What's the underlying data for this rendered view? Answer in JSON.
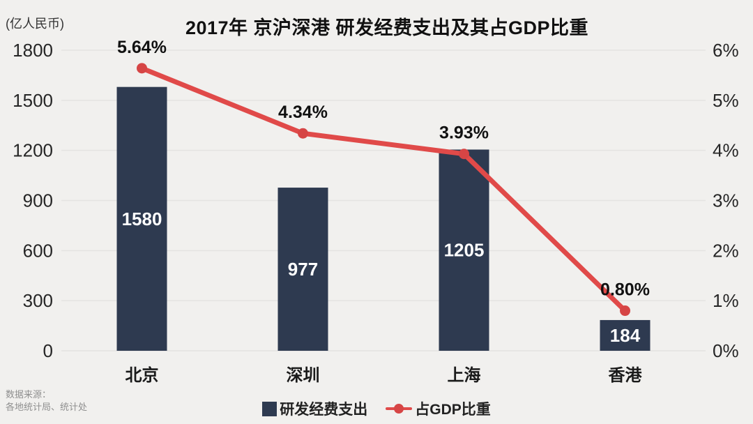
{
  "title": "2017年 京沪深港 研发经费支出及其占GDP比重",
  "unit_label": "(亿人民币)",
  "legend": {
    "bar_label": "研发经费支出",
    "line_label": "占GDP比重"
  },
  "source": {
    "line1": "数据来源：",
    "line2": "各地统计局、统计处"
  },
  "colors": {
    "background": "#f1f0ee",
    "bar": "#2e3a50",
    "line": "#e04a49",
    "marker": "#d64545",
    "grid": "#e4e3e1",
    "axis_text": "#262626",
    "value_label_text": "#ffffff",
    "point_label_text": "#111111",
    "source_text": "#8f8f8f"
  },
  "chart_data": {
    "type": "bar",
    "subtype": "bar-line-combo",
    "title": "2017年 京沪深港 研发经费支出及其占GDP比重",
    "categories": [
      "北京",
      "深圳",
      "上海",
      "香港"
    ],
    "series": [
      {
        "name": "研发经费支出",
        "type": "bar",
        "axis": "left",
        "values": [
          1580,
          977,
          1205,
          184
        ],
        "value_labels": [
          "1580",
          "977",
          "1205",
          "184"
        ]
      },
      {
        "name": "占GDP比重",
        "type": "line",
        "axis": "right",
        "values": [
          5.64,
          4.34,
          3.93,
          0.8
        ],
        "value_labels": [
          "5.64%",
          "4.34%",
          "3.93%",
          "0.80%"
        ]
      }
    ],
    "left_axis": {
      "label": "(亿人民币)",
      "min": 0,
      "max": 1800,
      "ticks": [
        "1800",
        "1500",
        "1200",
        "900",
        "600",
        "300",
        "0"
      ]
    },
    "right_axis": {
      "min": 0,
      "max": 6,
      "ticks": [
        "6%",
        "5%",
        "4%",
        "3%",
        "2%",
        "1%",
        "0%"
      ]
    },
    "grid": true,
    "legend_position": "bottom"
  }
}
